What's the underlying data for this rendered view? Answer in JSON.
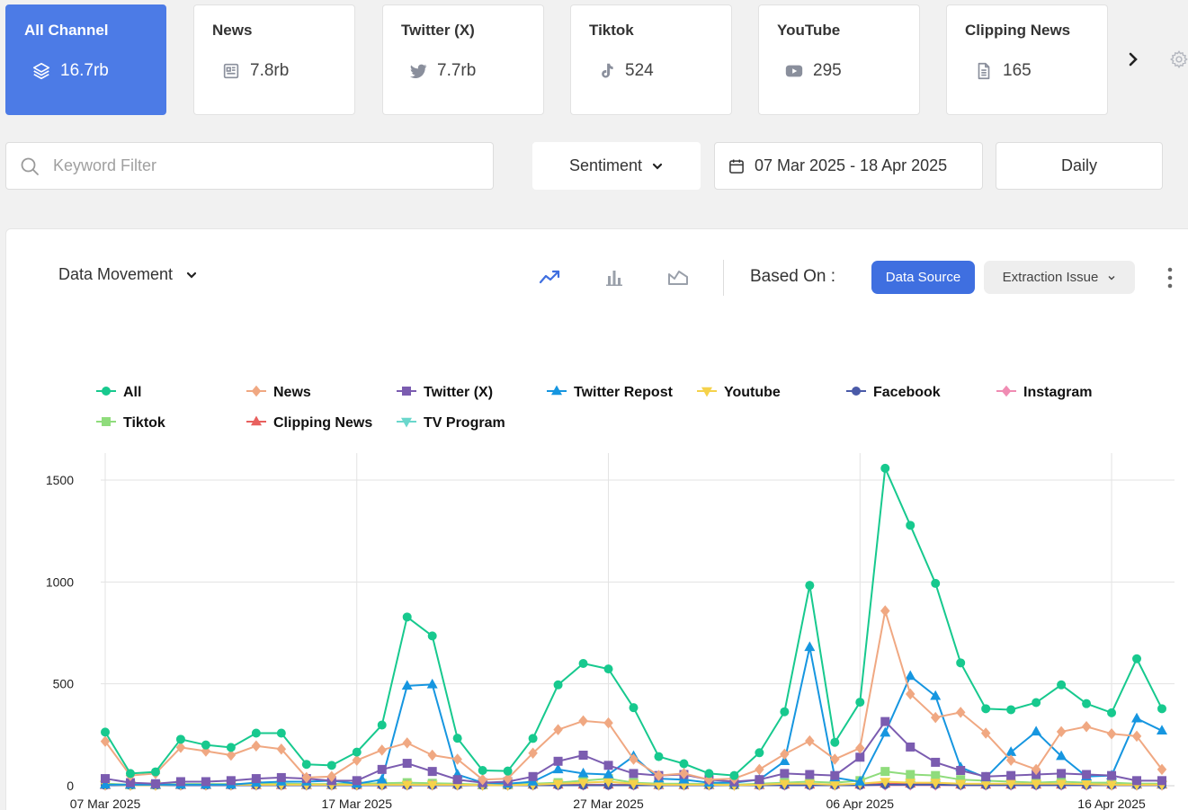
{
  "channels": [
    {
      "name": "All Channel",
      "count": "16.7rb",
      "icon": "layers-icon",
      "active": true
    },
    {
      "name": "News",
      "count": "7.8rb",
      "icon": "newspaper-icon",
      "active": false
    },
    {
      "name": "Twitter (X)",
      "count": "7.7rb",
      "icon": "twitter-icon",
      "active": false
    },
    {
      "name": "Tiktok",
      "count": "524",
      "icon": "tiktok-icon",
      "active": false
    },
    {
      "name": "YouTube",
      "count": "295",
      "icon": "youtube-icon",
      "active": false
    },
    {
      "name": "Clipping News",
      "count": "165",
      "icon": "document-icon",
      "active": false
    }
  ],
  "filters": {
    "keyword_placeholder": "Keyword Filter",
    "sentiment_label": "Sentiment",
    "date_range": "07 Mar 2025 - 18 Apr 2025",
    "interval": "Daily"
  },
  "panel": {
    "view_select": "Data Movement",
    "based_on_label": "Based On :",
    "data_source_label": "Data Source",
    "extraction_issue_label": "Extraction Issue"
  },
  "colors": {
    "accent": "#4c7be6",
    "All": "#17c98e",
    "News": "#f0a882",
    "Twitter (X)": "#7b5cb0",
    "Twitter Repost": "#1696e0",
    "Youtube": "#f5d24b",
    "Facebook": "#4a5aa8",
    "Instagram": "#f08cb3",
    "Tiktok": "#8fdc7c",
    "Clipping News": "#e8605e",
    "TV Program": "#6ad7cc"
  },
  "chart_data": {
    "type": "line",
    "title": "",
    "xlabel": "",
    "ylabel": "",
    "ylim": [
      0,
      1600
    ],
    "yticks": [
      0,
      500,
      1000,
      1500
    ],
    "xtick_labels": [
      "07 Mar 2025",
      "17 Mar 2025",
      "27 Mar 2025",
      "06 Apr 2025",
      "16 Apr 2025"
    ],
    "grid": true,
    "legend_position": "top",
    "x": [
      "2025-03-07",
      "2025-03-08",
      "2025-03-09",
      "2025-03-10",
      "2025-03-11",
      "2025-03-12",
      "2025-03-13",
      "2025-03-14",
      "2025-03-15",
      "2025-03-16",
      "2025-03-17",
      "2025-03-18",
      "2025-03-19",
      "2025-03-20",
      "2025-03-21",
      "2025-03-22",
      "2025-03-23",
      "2025-03-24",
      "2025-03-25",
      "2025-03-26",
      "2025-03-27",
      "2025-03-28",
      "2025-03-29",
      "2025-03-30",
      "2025-03-31",
      "2025-04-01",
      "2025-04-02",
      "2025-04-03",
      "2025-04-04",
      "2025-04-05",
      "2025-04-06",
      "2025-04-07",
      "2025-04-08",
      "2025-04-09",
      "2025-04-10",
      "2025-04-11",
      "2025-04-12",
      "2025-04-13",
      "2025-04-14",
      "2025-04-15",
      "2025-04-16",
      "2025-04-17",
      "2025-04-18"
    ],
    "series": [
      {
        "name": "All",
        "marker": "circle",
        "values": [
          263,
          60,
          68,
          228,
          200,
          188,
          258,
          258,
          105,
          100,
          165,
          298,
          828,
          735,
          233,
          75,
          72,
          232,
          495,
          600,
          573,
          383,
          143,
          108,
          60,
          50,
          162,
          363,
          983,
          213,
          410,
          1558,
          1278,
          993,
          603,
          378,
          373,
          408,
          495,
          403,
          358,
          623,
          378
        ]
      },
      {
        "name": "News",
        "marker": "diamond",
        "values": [
          218,
          50,
          60,
          188,
          170,
          150,
          195,
          180,
          40,
          45,
          125,
          175,
          210,
          150,
          130,
          30,
          35,
          160,
          275,
          318,
          308,
          130,
          50,
          60,
          30,
          35,
          80,
          155,
          220,
          130,
          185,
          858,
          450,
          335,
          360,
          258,
          125,
          80,
          265,
          290,
          255,
          243,
          80
        ]
      },
      {
        "name": "Twitter (X)",
        "marker": "square",
        "values": [
          35,
          15,
          10,
          20,
          20,
          25,
          35,
          40,
          35,
          25,
          25,
          80,
          110,
          70,
          30,
          15,
          20,
          45,
          120,
          150,
          100,
          60,
          50,
          55,
          30,
          20,
          30,
          60,
          55,
          50,
          140,
          315,
          190,
          115,
          75,
          45,
          50,
          55,
          60,
          55,
          50,
          25,
          25
        ]
      },
      {
        "name": "Twitter Repost",
        "marker": "triangle",
        "values": [
          5,
          5,
          5,
          5,
          5,
          5,
          15,
          20,
          20,
          25,
          10,
          30,
          490,
          497,
          55,
          15,
          10,
          20,
          80,
          60,
          55,
          145,
          35,
          30,
          15,
          15,
          30,
          120,
          680,
          40,
          20,
          260,
          538,
          440,
          90,
          40,
          165,
          265,
          145,
          45,
          50,
          330,
          270
        ]
      },
      {
        "name": "Youtube",
        "marker": "triangle-down",
        "values": [
          5,
          3,
          3,
          5,
          5,
          5,
          5,
          5,
          5,
          5,
          5,
          5,
          5,
          5,
          5,
          3,
          3,
          5,
          10,
          15,
          20,
          10,
          5,
          5,
          5,
          3,
          5,
          10,
          10,
          5,
          10,
          20,
          15,
          15,
          10,
          10,
          10,
          10,
          10,
          8,
          5,
          5,
          5
        ]
      },
      {
        "name": "Facebook",
        "marker": "circle",
        "values": [
          2,
          2,
          2,
          2,
          2,
          2,
          2,
          2,
          2,
          2,
          2,
          2,
          2,
          2,
          2,
          2,
          2,
          2,
          2,
          2,
          2,
          2,
          2,
          2,
          2,
          2,
          2,
          2,
          2,
          2,
          2,
          5,
          5,
          5,
          3,
          3,
          3,
          3,
          3,
          3,
          3,
          3,
          3
        ]
      },
      {
        "name": "Instagram",
        "marker": "diamond",
        "values": [
          3,
          3,
          3,
          3,
          3,
          3,
          3,
          3,
          3,
          3,
          3,
          3,
          3,
          3,
          3,
          3,
          3,
          3,
          3,
          3,
          3,
          3,
          3,
          3,
          3,
          3,
          3,
          3,
          3,
          3,
          3,
          3,
          3,
          3,
          3,
          3,
          3,
          3,
          3,
          3,
          3,
          3,
          3
        ]
      },
      {
        "name": "Tiktok",
        "marker": "square",
        "values": [
          10,
          5,
          5,
          8,
          8,
          8,
          10,
          10,
          8,
          8,
          10,
          12,
          15,
          12,
          10,
          5,
          5,
          10,
          15,
          25,
          35,
          15,
          10,
          10,
          8,
          5,
          10,
          15,
          20,
          15,
          25,
          70,
          55,
          50,
          30,
          25,
          20,
          15,
          20,
          15,
          15,
          10,
          10
        ]
      },
      {
        "name": "Clipping News",
        "marker": "triangle",
        "values": [
          3,
          3,
          3,
          3,
          3,
          3,
          3,
          3,
          3,
          3,
          3,
          5,
          5,
          5,
          5,
          3,
          3,
          5,
          5,
          5,
          5,
          5,
          3,
          3,
          3,
          3,
          3,
          5,
          5,
          5,
          5,
          10,
          10,
          8,
          5,
          5,
          5,
          5,
          5,
          5,
          5,
          5,
          5
        ]
      },
      {
        "name": "TV Program",
        "marker": "triangle-down",
        "values": [
          5,
          5,
          5,
          5,
          5,
          5,
          5,
          5,
          5,
          5,
          5,
          5,
          5,
          5,
          5,
          5,
          5,
          5,
          5,
          5,
          5,
          5,
          5,
          5,
          5,
          5,
          5,
          5,
          5,
          5,
          5,
          5,
          5,
          5,
          5,
          5,
          5,
          5,
          5,
          5,
          5,
          5,
          5
        ]
      }
    ]
  }
}
